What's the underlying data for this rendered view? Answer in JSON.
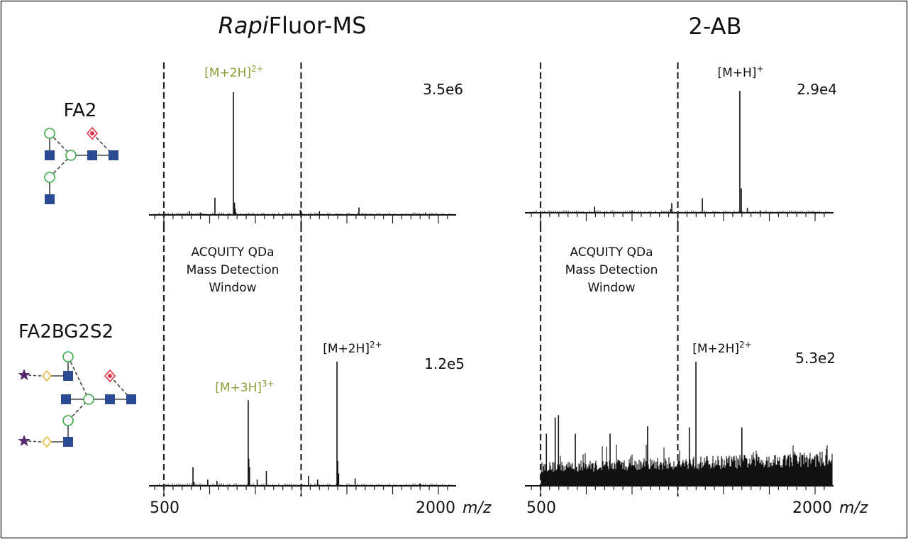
{
  "titles": {
    "rfms_italic": "Rapi",
    "rfms_rest": "Fluor-MS",
    "twoab": "2-AB"
  },
  "glycans": {
    "top": "FA2",
    "bottom": "FA2BG2S2"
  },
  "window_label": [
    "ACQUITY QDa",
    "Mass Detection",
    "Window"
  ],
  "axis": {
    "tick_500": "500",
    "tick_2000": "2000",
    "unit": "m/z"
  },
  "colors": {
    "olive": "#8f9b36",
    "glcnac": "#2b4a94",
    "mannose": "#3aaa48",
    "fucose": "#e0314a",
    "galactose": "#f0b43c",
    "sialic": "#5b2a6e"
  },
  "chart_data": [
    {
      "id": "rfms-fa2",
      "type": "bar",
      "title": "RapiFluor-MS FA2",
      "xlabel": "m/z",
      "xlim": [
        420,
        2100
      ],
      "window": [
        500,
        1250
      ],
      "full_scale": "3.5e6",
      "annotations": [
        {
          "mz": 880,
          "base": "[M+2H]",
          "sup": "2+",
          "color": "olive"
        }
      ],
      "peaks": [
        [
          640,
          0.03
        ],
        [
          700,
          0.02
        ],
        [
          779,
          0.14
        ],
        [
          880,
          1.0
        ],
        [
          886,
          0.1
        ],
        [
          890,
          0.05
        ],
        [
          1245,
          0.04
        ],
        [
          1350,
          0.03
        ],
        [
          1566,
          0.06
        ],
        [
          1930,
          0.02
        ]
      ]
    },
    {
      "id": "rfms-fa2bg2s2",
      "type": "bar",
      "title": "RapiFluor-MS FA2BG2S2",
      "xlabel": "m/z",
      "xlim": [
        420,
        2100
      ],
      "window": [
        500,
        1250
      ],
      "full_scale": "1.2e5",
      "annotations": [
        {
          "mz": 961,
          "base": "[M+3H]",
          "sup": "3+",
          "color": "olive"
        },
        {
          "mz": 1446,
          "base": "[M+2H]",
          "sup": "2+",
          "color": "black"
        }
      ],
      "peaks": [
        [
          659,
          0.15
        ],
        [
          665,
          0.03
        ],
        [
          740,
          0.05
        ],
        [
          790,
          0.04
        ],
        [
          961,
          0.69
        ],
        [
          964,
          0.22
        ],
        [
          968,
          0.15
        ],
        [
          1010,
          0.05
        ],
        [
          1060,
          0.12
        ],
        [
          1290,
          0.08
        ],
        [
          1340,
          0.05
        ],
        [
          1446,
          1.0
        ],
        [
          1450,
          0.2
        ],
        [
          1455,
          0.1
        ],
        [
          1545,
          0.06
        ],
        [
          1900,
          0.02
        ]
      ]
    },
    {
      "id": "2ab-fa2",
      "type": "bar",
      "title": "2-AB FA2",
      "xlabel": "m/z",
      "xlim": [
        420,
        2100
      ],
      "window": [
        500,
        1250
      ],
      "full_scale": "2.9e4",
      "annotations": [
        {
          "mz": 1589,
          "base": "[M+H]",
          "sup": "+",
          "color": "black"
        }
      ],
      "peaks": [
        [
          795,
          0.05
        ],
        [
          1000,
          0.02
        ],
        [
          1210,
          0.03
        ],
        [
          1217,
          0.08
        ],
        [
          1384,
          0.12
        ],
        [
          1589,
          1.0
        ],
        [
          1597,
          0.2
        ],
        [
          1630,
          0.04
        ],
        [
          1700,
          0.02
        ]
      ]
    },
    {
      "id": "2ab-fa2bg2s2",
      "type": "bar",
      "title": "2-AB FA2BG2S2",
      "xlabel": "m/z",
      "xlim": [
        420,
        2100
      ],
      "window": [
        500,
        1250
      ],
      "full_scale": "5.3e2",
      "noise_level": 0.35,
      "annotations": [
        {
          "mz": 1349,
          "base": "[M+2H]",
          "sup": "2+",
          "color": "black"
        }
      ],
      "peaks": [
        [
          1349,
          1.0
        ],
        [
          580,
          0.55
        ],
        [
          598,
          0.57
        ],
        [
          532,
          0.42
        ],
        [
          690,
          0.42
        ],
        [
          880,
          0.42
        ],
        [
          1313,
          0.47
        ],
        [
          1600,
          0.47
        ],
        [
          1085,
          0.48
        ]
      ]
    }
  ]
}
